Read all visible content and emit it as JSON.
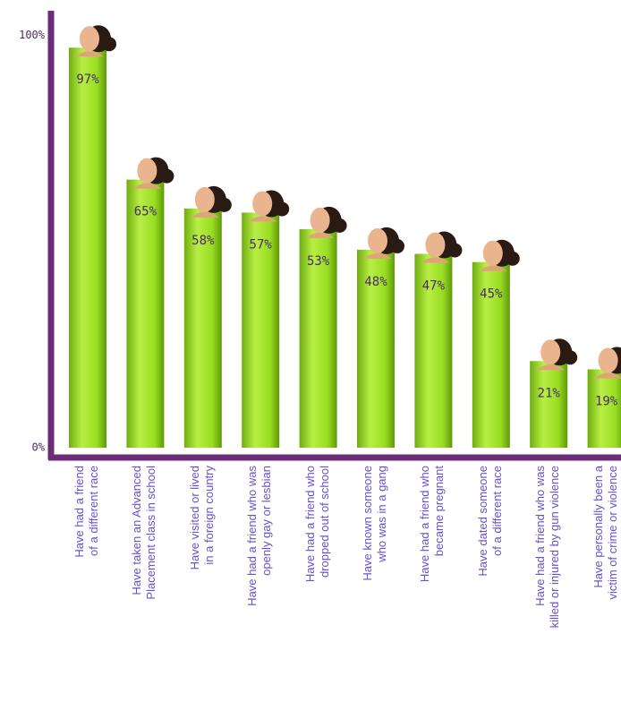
{
  "chart_data": {
    "type": "bar",
    "categories": [
      "Have had a friend\nof a different race",
      "Have taken an Advanced\nPlacement class in school",
      "Have visited or lived\nin a foreign country",
      "Have had a friend who was\nopenly gay or lesbian",
      "Have had a friend who\ndropped out of school",
      "Have known someone\nwho was in a gang",
      "Have had a friend who\nbecame pregnant",
      "Have dated someone\nof a different race",
      "Have had a friend who was\nkilled or injured by gun violence",
      "Have personally been a\nvictim of crime or violence"
    ],
    "values": [
      97,
      65,
      58,
      57,
      53,
      48,
      47,
      45,
      21,
      19
    ],
    "value_labels": [
      "97%",
      "65%",
      "58%",
      "57%",
      "53%",
      "48%",
      "47%",
      "45%",
      "21%",
      "19%"
    ],
    "color": "#99dd22",
    "ylim": [
      0,
      100
    ],
    "yticks": [
      {
        "value": 0,
        "label": "0%"
      },
      {
        "value": 100,
        "label": "100%"
      }
    ]
  }
}
